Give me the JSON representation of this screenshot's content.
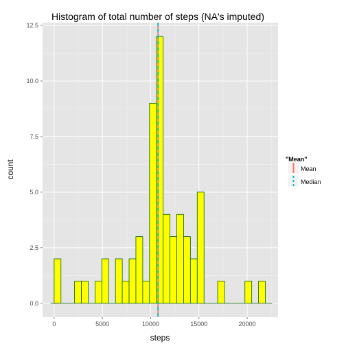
{
  "chart_data": {
    "type": "bar",
    "title": "Histogram of total number of steps (NA's imputed)",
    "xlabel": "steps",
    "ylabel": "count",
    "xlim": [
      -1200,
      23200
    ],
    "ylim": [
      -0.625,
      12.625
    ],
    "x_ticks": [
      "0",
      "5000",
      "10000",
      "15000",
      "20000"
    ],
    "x_tick_values": [
      0,
      5000,
      10000,
      15000,
      20000
    ],
    "y_ticks": [
      "0.0",
      "2.5",
      "5.0",
      "7.5",
      "10.0",
      "12.5"
    ],
    "y_tick_values": [
      0,
      2.5,
      5,
      7.5,
      10,
      12.5
    ],
    "grid": true,
    "bin_width": 706,
    "bins": [
      {
        "x": 0,
        "count": 0
      },
      {
        "x": 353,
        "count": 2
      },
      {
        "x": 1059,
        "count": 0
      },
      {
        "x": 1765,
        "count": 0
      },
      {
        "x": 2471,
        "count": 1
      },
      {
        "x": 3177,
        "count": 1
      },
      {
        "x": 3883,
        "count": 0
      },
      {
        "x": 4589,
        "count": 1
      },
      {
        "x": 5295,
        "count": 2
      },
      {
        "x": 6001,
        "count": 0
      },
      {
        "x": 6707,
        "count": 2
      },
      {
        "x": 7413,
        "count": 1
      },
      {
        "x": 8119,
        "count": 2
      },
      {
        "x": 8825,
        "count": 3
      },
      {
        "x": 9531,
        "count": 1
      },
      {
        "x": 10237,
        "count": 9
      },
      {
        "x": 10943,
        "count": 12
      },
      {
        "x": 11649,
        "count": 4
      },
      {
        "x": 12355,
        "count": 3
      },
      {
        "x": 13061,
        "count": 4
      },
      {
        "x": 13767,
        "count": 3
      },
      {
        "x": 14473,
        "count": 2
      },
      {
        "x": 15179,
        "count": 5
      },
      {
        "x": 15885,
        "count": 0
      },
      {
        "x": 16591,
        "count": 0
      },
      {
        "x": 17297,
        "count": 1
      },
      {
        "x": 18003,
        "count": 0
      },
      {
        "x": 18709,
        "count": 0
      },
      {
        "x": 19415,
        "count": 0
      },
      {
        "x": 20121,
        "count": 1
      },
      {
        "x": 20827,
        "count": 0
      },
      {
        "x": 21533,
        "count": 1
      },
      {
        "x": 22239,
        "count": 0
      }
    ],
    "reference_lines": [
      {
        "name": "Mean",
        "value": 10766,
        "color": "#f8766d",
        "dash": "solid"
      },
      {
        "name": "Median",
        "value": 10766,
        "color": "#00bfc4",
        "dash": "dashed"
      }
    ],
    "legend": {
      "title": "\"Mean\"",
      "placement": "right",
      "items": [
        "Mean",
        "Median"
      ]
    },
    "colors": {
      "bar_fill": "#ffff00",
      "bar_stroke": "#006400",
      "panel_background": "#e5e5e5",
      "grid_major": "#ffffff",
      "grid_minor": "#f2f2f2"
    }
  }
}
